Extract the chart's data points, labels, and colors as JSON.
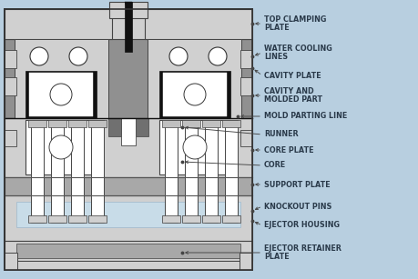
{
  "bg_color": "#b8cfe0",
  "lg1": "#d0d0d0",
  "lg2": "#c0c0c0",
  "mg": "#a8a8a8",
  "dg1": "#909090",
  "dg2": "#707070",
  "wh": "#ffffff",
  "bk": "#111111",
  "near_black": "#222222",
  "blue_light": "#c8dce8",
  "label_color": "#2a3a4a",
  "arrow_color": "#444444",
  "labels": [
    "TOP CLAMPING\nPLATE",
    "WATER COOLING\nLINES",
    "CAVITY PLATE",
    "CAVITY AND\nMOLDED PART",
    "MOLD PARTING LINE",
    "RUNNER",
    "CORE PLATE",
    "CORE",
    "SUPPORT PLATE",
    "KNOCKOUT PINS",
    "EJECTOR HOUSING",
    "EJECTOR RETAINER\nPLATE"
  ],
  "label_fontsize": 5.8
}
